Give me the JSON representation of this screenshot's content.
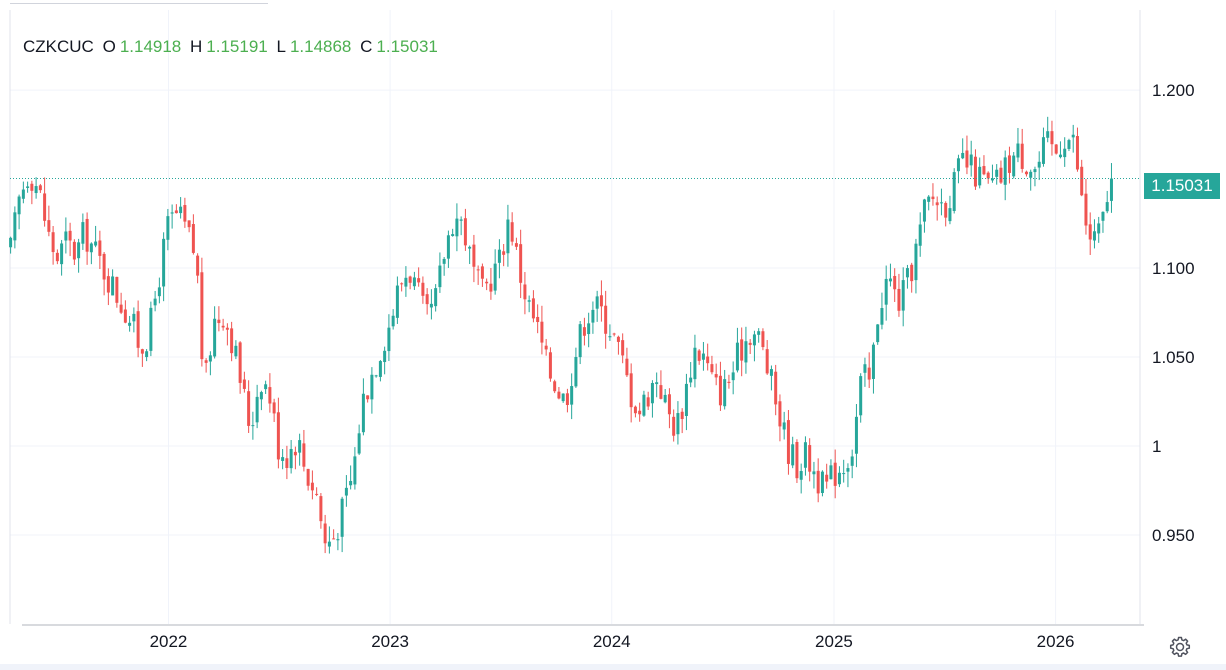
{
  "legend": {
    "symbol": "CZKCUC",
    "o_label": "O",
    "o_value": "1.14918",
    "h_label": "H",
    "h_value": "1.15191",
    "l_label": "L",
    "l_value": "1.14868",
    "c_label": "C",
    "c_value": "1.15031"
  },
  "last_price_label": "1.15031",
  "colors": {
    "up": "#26a69a",
    "down": "#ef5350",
    "legend_value": "#4caf50",
    "last_price_line": "#26a69a",
    "grid": "#f0f3fa",
    "axis_text": "#131722"
  },
  "settings_icon": "gear-icon",
  "chart_data": {
    "type": "candlestick",
    "title": "",
    "xlabel": "",
    "ylabel": "",
    "grid": true,
    "legend": "top-left",
    "y_axis_side": "right",
    "ylim": [
      0.9,
      1.245
    ],
    "xlim": [
      "2021-04-15",
      "2026-05-20"
    ],
    "y_ticks": [
      0.95,
      1.0,
      1.05,
      1.1,
      1.2
    ],
    "y_tick_labels": [
      "0.950",
      "1",
      "1.050",
      "1.100",
      "1.200"
    ],
    "x_ticks": [
      "2022-01-01",
      "2023-01-01",
      "2024-01-01",
      "2025-01-01",
      "2026-01-01"
    ],
    "x_tick_labels": [
      "2022",
      "2023",
      "2024",
      "2025",
      "2026"
    ],
    "last_price": 1.15031,
    "close_series": [
      [
        "2021-04-16",
        1.11
      ],
      [
        "2021-05-01",
        1.14
      ],
      [
        "2021-05-16",
        1.155
      ],
      [
        "2021-06-01",
        1.145
      ],
      [
        "2021-06-16",
        1.12
      ],
      [
        "2021-07-01",
        1.105
      ],
      [
        "2021-07-16",
        1.115
      ],
      [
        "2021-08-01",
        1.108
      ],
      [
        "2021-08-16",
        1.12
      ],
      [
        "2021-09-01",
        1.11
      ],
      [
        "2021-09-16",
        1.1
      ],
      [
        "2021-10-01",
        1.09
      ],
      [
        "2021-10-16",
        1.08
      ],
      [
        "2021-11-01",
        1.07
      ],
      [
        "2021-11-16",
        1.055
      ],
      [
        "2021-12-01",
        1.065
      ],
      [
        "2021-12-16",
        1.095
      ],
      [
        "2022-01-01",
        1.125
      ],
      [
        "2022-01-16",
        1.13
      ],
      [
        "2022-02-01",
        1.12
      ],
      [
        "2022-02-16",
        1.105
      ],
      [
        "2022-03-01",
        1.03
      ],
      [
        "2022-03-16",
        1.07
      ],
      [
        "2022-04-01",
        1.075
      ],
      [
        "2022-04-16",
        1.06
      ],
      [
        "2022-05-01",
        1.035
      ],
      [
        "2022-05-16",
        1.01
      ],
      [
        "2022-06-01",
        1.04
      ],
      [
        "2022-06-16",
        1.03
      ],
      [
        "2022-07-01",
        1.0
      ],
      [
        "2022-07-16",
        0.995
      ],
      [
        "2022-08-01",
        1.005
      ],
      [
        "2022-08-16",
        0.985
      ],
      [
        "2022-09-01",
        0.975
      ],
      [
        "2022-09-16",
        0.945
      ],
      [
        "2022-10-01",
        0.95
      ],
      [
        "2022-10-16",
        0.965
      ],
      [
        "2022-11-01",
        0.985
      ],
      [
        "2022-11-16",
        1.025
      ],
      [
        "2022-12-01",
        1.04
      ],
      [
        "2022-12-16",
        1.055
      ],
      [
        "2023-01-01",
        1.07
      ],
      [
        "2023-01-16",
        1.09
      ],
      [
        "2023-02-01",
        1.1
      ],
      [
        "2023-02-16",
        1.085
      ],
      [
        "2023-03-01",
        1.07
      ],
      [
        "2023-03-16",
        1.08
      ],
      [
        "2023-04-01",
        1.11
      ],
      [
        "2023-04-16",
        1.13
      ],
      [
        "2023-05-01",
        1.125
      ],
      [
        "2023-05-16",
        1.1
      ],
      [
        "2023-06-01",
        1.085
      ],
      [
        "2023-06-16",
        1.095
      ],
      [
        "2023-07-01",
        1.105
      ],
      [
        "2023-07-16",
        1.13
      ],
      [
        "2023-08-01",
        1.1
      ],
      [
        "2023-08-16",
        1.08
      ],
      [
        "2023-09-01",
        1.065
      ],
      [
        "2023-09-16",
        1.045
      ],
      [
        "2023-10-01",
        1.035
      ],
      [
        "2023-10-16",
        1.025
      ],
      [
        "2023-11-01",
        1.05
      ],
      [
        "2023-11-16",
        1.07
      ],
      [
        "2023-12-01",
        1.08
      ],
      [
        "2023-12-16",
        1.075
      ],
      [
        "2024-01-01",
        1.065
      ],
      [
        "2024-01-16",
        1.05
      ],
      [
        "2024-02-01",
        1.03
      ],
      [
        "2024-02-16",
        1.02
      ],
      [
        "2024-03-01",
        1.03
      ],
      [
        "2024-03-16",
        1.04
      ],
      [
        "2024-04-01",
        1.02
      ],
      [
        "2024-04-16",
        1.01
      ],
      [
        "2024-05-01",
        1.03
      ],
      [
        "2024-05-16",
        1.055
      ],
      [
        "2024-06-01",
        1.05
      ],
      [
        "2024-06-16",
        1.035
      ],
      [
        "2024-07-01",
        1.03
      ],
      [
        "2024-07-16",
        1.04
      ],
      [
        "2024-08-01",
        1.055
      ],
      [
        "2024-08-16",
        1.065
      ],
      [
        "2024-09-01",
        1.06
      ],
      [
        "2024-09-16",
        1.04
      ],
      [
        "2024-10-01",
        1.02
      ],
      [
        "2024-10-16",
        1.0
      ],
      [
        "2024-11-01",
        0.99
      ],
      [
        "2024-11-16",
        0.995
      ],
      [
        "2024-12-01",
        0.985
      ],
      [
        "2024-12-16",
        0.975
      ],
      [
        "2025-01-01",
        0.985
      ],
      [
        "2025-01-16",
        0.99
      ],
      [
        "2025-02-01",
        1.0
      ],
      [
        "2025-02-16",
        1.04
      ],
      [
        "2025-03-01",
        1.035
      ],
      [
        "2025-03-16",
        1.08
      ],
      [
        "2025-04-01",
        1.095
      ],
      [
        "2025-04-16",
        1.08
      ],
      [
        "2025-05-01",
        1.09
      ],
      [
        "2025-05-16",
        1.11
      ],
      [
        "2025-06-01",
        1.135
      ],
      [
        "2025-06-16",
        1.14
      ],
      [
        "2025-07-01",
        1.135
      ],
      [
        "2025-07-16",
        1.145
      ],
      [
        "2025-08-01",
        1.16
      ],
      [
        "2025-08-16",
        1.155
      ],
      [
        "2025-09-01",
        1.15
      ],
      [
        "2025-09-16",
        1.145
      ],
      [
        "2025-10-01",
        1.15
      ],
      [
        "2025-10-16",
        1.16
      ],
      [
        "2025-11-01",
        1.165
      ],
      [
        "2025-11-16",
        1.16
      ],
      [
        "2025-12-01",
        1.155
      ],
      [
        "2025-12-16",
        1.17
      ],
      [
        "2026-01-01",
        1.165
      ],
      [
        "2026-01-16",
        1.175
      ],
      [
        "2026-02-01",
        1.17
      ],
      [
        "2026-02-16",
        1.13
      ],
      [
        "2026-03-01",
        1.115
      ],
      [
        "2026-03-16",
        1.12
      ],
      [
        "2026-04-01",
        1.15
      ],
      [
        "2026-04-08",
        1.15031
      ]
    ]
  }
}
